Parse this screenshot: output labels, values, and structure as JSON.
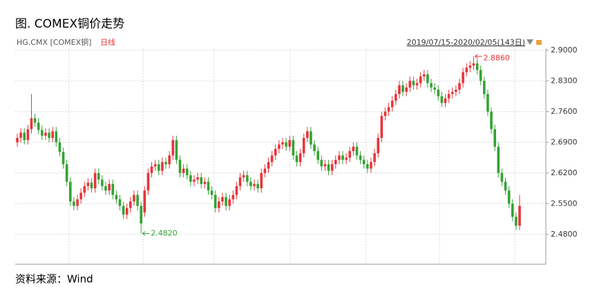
{
  "chart_data": {
    "type": "candlestick",
    "title": "图. COMEX铜价走势",
    "symbol": "HG.CMX [COMEX铜]",
    "period": "日线",
    "range_label": "2019/07/15-2020/02/05(143日)",
    "source": "资料来源：Wind",
    "up_color": "#e8343a",
    "down_color": "#33a333",
    "ylim": [
      2.412,
      2.928
    ],
    "yticks": [
      {
        "value": 2.48,
        "label": "2.4800"
      },
      {
        "value": 2.55,
        "label": "2.5500"
      },
      {
        "value": 2.62,
        "label": "2.6200"
      },
      {
        "value": 2.69,
        "label": "2.6900"
      },
      {
        "value": 2.76,
        "label": "2.7600"
      },
      {
        "value": 2.83,
        "label": "2.8300"
      },
      {
        "value": 2.9,
        "label": "2.9000"
      }
    ],
    "grid": true,
    "high_annotation": {
      "label": "2.8860",
      "value": 2.886,
      "color": "#e8343a"
    },
    "low_annotation": {
      "label": "2.4820",
      "value": 2.482,
      "color": "#33a333"
    },
    "open": [
      2.69,
      2.7,
      2.712,
      2.695,
      2.72,
      2.745,
      2.735,
      2.718,
      2.705,
      2.712,
      2.7,
      2.715,
      2.69,
      2.668,
      2.64,
      2.6,
      2.555,
      2.545,
      2.56,
      2.575,
      2.59,
      2.598,
      2.585,
      2.62,
      2.605,
      2.59,
      2.58,
      2.595,
      2.57,
      2.56,
      2.545,
      2.525,
      2.54,
      2.555,
      2.57,
      2.545,
      2.53,
      2.58,
      2.62,
      2.635,
      2.64,
      2.625,
      2.645,
      2.64,
      2.66,
      2.695,
      2.65,
      2.62,
      2.63,
      2.615,
      2.6,
      2.605,
      2.61,
      2.595,
      2.6,
      2.58,
      2.57,
      2.54,
      2.555,
      2.565,
      2.545,
      2.56,
      2.57,
      2.59,
      2.61,
      2.615,
      2.6,
      2.59,
      2.595,
      2.585,
      2.62,
      2.63,
      2.645,
      2.66,
      2.675,
      2.685,
      2.69,
      2.68,
      2.695,
      2.66,
      2.645,
      2.665,
      2.7,
      2.715,
      2.685,
      2.67,
      2.65,
      2.635,
      2.64,
      2.625,
      2.64,
      2.65,
      2.66,
      2.65,
      2.655,
      2.67,
      2.68,
      2.66,
      2.65,
      2.64,
      2.63,
      2.645,
      2.665,
      2.7,
      2.75,
      2.76,
      2.77,
      2.785,
      2.8,
      2.82,
      2.805,
      2.815,
      2.83,
      2.82,
      2.825,
      2.84,
      2.845,
      2.825,
      2.815,
      2.81,
      2.795,
      2.78,
      2.79,
      2.8,
      2.805,
      2.81,
      2.825,
      2.85,
      2.86,
      2.865,
      2.87,
      2.855,
      2.83,
      2.8,
      2.76,
      2.72,
      2.68,
      2.62,
      2.6,
      2.58,
      2.55,
      2.52,
      2.5
    ],
    "high": [
      2.71,
      2.722,
      2.722,
      2.73,
      2.8,
      2.755,
      2.745,
      2.728,
      2.722,
      2.722,
      2.725,
      2.725,
      2.7,
      2.678,
      2.65,
      2.61,
      2.565,
      2.57,
      2.585,
      2.6,
      2.608,
      2.608,
      2.63,
      2.63,
      2.615,
      2.6,
      2.605,
      2.605,
      2.58,
      2.57,
      2.555,
      2.55,
      2.565,
      2.58,
      2.58,
      2.555,
      2.59,
      2.63,
      2.645,
      2.65,
      2.65,
      2.655,
      2.655,
      2.67,
      2.705,
      2.705,
      2.66,
      2.64,
      2.64,
      2.625,
      2.615,
      2.62,
      2.62,
      2.61,
      2.61,
      2.59,
      2.58,
      2.565,
      2.575,
      2.575,
      2.57,
      2.58,
      2.6,
      2.62,
      2.625,
      2.625,
      2.61,
      2.605,
      2.605,
      2.63,
      2.64,
      2.655,
      2.67,
      2.685,
      2.695,
      2.7,
      2.7,
      2.705,
      2.705,
      2.67,
      2.675,
      2.71,
      2.725,
      2.725,
      2.695,
      2.68,
      2.66,
      2.65,
      2.65,
      2.65,
      2.66,
      2.67,
      2.67,
      2.665,
      2.68,
      2.69,
      2.69,
      2.67,
      2.66,
      2.65,
      2.655,
      2.675,
      2.71,
      2.76,
      2.77,
      2.78,
      2.795,
      2.81,
      2.83,
      2.83,
      2.825,
      2.84,
      2.84,
      2.835,
      2.85,
      2.855,
      2.855,
      2.835,
      2.825,
      2.82,
      2.805,
      2.8,
      2.81,
      2.815,
      2.82,
      2.835,
      2.86,
      2.87,
      2.875,
      2.886,
      2.88,
      2.865,
      2.84,
      2.81,
      2.77,
      2.73,
      2.69,
      2.63,
      2.61,
      2.59,
      2.56,
      2.53,
      2.57
    ],
    "low": [
      2.68,
      2.69,
      2.685,
      2.685,
      2.71,
      2.725,
      2.708,
      2.695,
      2.695,
      2.69,
      2.69,
      2.68,
      2.658,
      2.63,
      2.59,
      2.545,
      2.535,
      2.535,
      2.55,
      2.565,
      2.58,
      2.575,
      2.575,
      2.595,
      2.58,
      2.57,
      2.57,
      2.56,
      2.55,
      2.535,
      2.515,
      2.515,
      2.53,
      2.545,
      2.535,
      2.482,
      2.52,
      2.57,
      2.61,
      2.625,
      2.615,
      2.615,
      2.63,
      2.63,
      2.65,
      2.64,
      2.61,
      2.61,
      2.605,
      2.59,
      2.59,
      2.595,
      2.585,
      2.585,
      2.57,
      2.56,
      2.53,
      2.53,
      2.545,
      2.535,
      2.535,
      2.55,
      2.56,
      2.58,
      2.6,
      2.59,
      2.58,
      2.58,
      2.575,
      2.575,
      2.61,
      2.62,
      2.635,
      2.65,
      2.665,
      2.675,
      2.67,
      2.67,
      2.65,
      2.635,
      2.635,
      2.655,
      2.69,
      2.675,
      2.66,
      2.64,
      2.625,
      2.625,
      2.615,
      2.615,
      2.63,
      2.64,
      2.64,
      2.64,
      2.645,
      2.66,
      2.65,
      2.64,
      2.63,
      2.62,
      2.62,
      2.635,
      2.655,
      2.69,
      2.74,
      2.75,
      2.76,
      2.775,
      2.79,
      2.795,
      2.795,
      2.805,
      2.81,
      2.81,
      2.815,
      2.83,
      2.815,
      2.805,
      2.8,
      2.785,
      2.77,
      2.77,
      2.78,
      2.79,
      2.795,
      2.8,
      2.815,
      2.84,
      2.85,
      2.855,
      2.845,
      2.82,
      2.79,
      2.75,
      2.71,
      2.67,
      2.61,
      2.59,
      2.57,
      2.54,
      2.51,
      2.49,
      2.49
    ],
    "close": [
      2.7,
      2.712,
      2.695,
      2.72,
      2.745,
      2.735,
      2.718,
      2.705,
      2.712,
      2.7,
      2.715,
      2.69,
      2.668,
      2.64,
      2.6,
      2.555,
      2.545,
      2.56,
      2.575,
      2.59,
      2.598,
      2.585,
      2.62,
      2.605,
      2.59,
      2.58,
      2.595,
      2.57,
      2.56,
      2.545,
      2.525,
      2.54,
      2.555,
      2.57,
      2.545,
      2.505,
      2.58,
      2.62,
      2.635,
      2.64,
      2.625,
      2.645,
      2.64,
      2.66,
      2.695,
      2.65,
      2.62,
      2.63,
      2.615,
      2.6,
      2.605,
      2.61,
      2.595,
      2.6,
      2.58,
      2.57,
      2.54,
      2.555,
      2.565,
      2.545,
      2.56,
      2.57,
      2.59,
      2.61,
      2.615,
      2.6,
      2.59,
      2.595,
      2.585,
      2.62,
      2.63,
      2.645,
      2.66,
      2.675,
      2.685,
      2.69,
      2.68,
      2.695,
      2.66,
      2.645,
      2.665,
      2.7,
      2.715,
      2.685,
      2.67,
      2.65,
      2.635,
      2.64,
      2.625,
      2.64,
      2.65,
      2.66,
      2.65,
      2.655,
      2.67,
      2.68,
      2.66,
      2.65,
      2.64,
      2.63,
      2.645,
      2.665,
      2.7,
      2.75,
      2.76,
      2.77,
      2.785,
      2.8,
      2.82,
      2.805,
      2.815,
      2.83,
      2.82,
      2.825,
      2.84,
      2.845,
      2.825,
      2.815,
      2.81,
      2.795,
      2.78,
      2.79,
      2.8,
      2.805,
      2.81,
      2.825,
      2.85,
      2.86,
      2.865,
      2.87,
      2.855,
      2.83,
      2.8,
      2.76,
      2.72,
      2.68,
      2.62,
      2.6,
      2.58,
      2.55,
      2.52,
      2.5,
      2.545
    ]
  }
}
